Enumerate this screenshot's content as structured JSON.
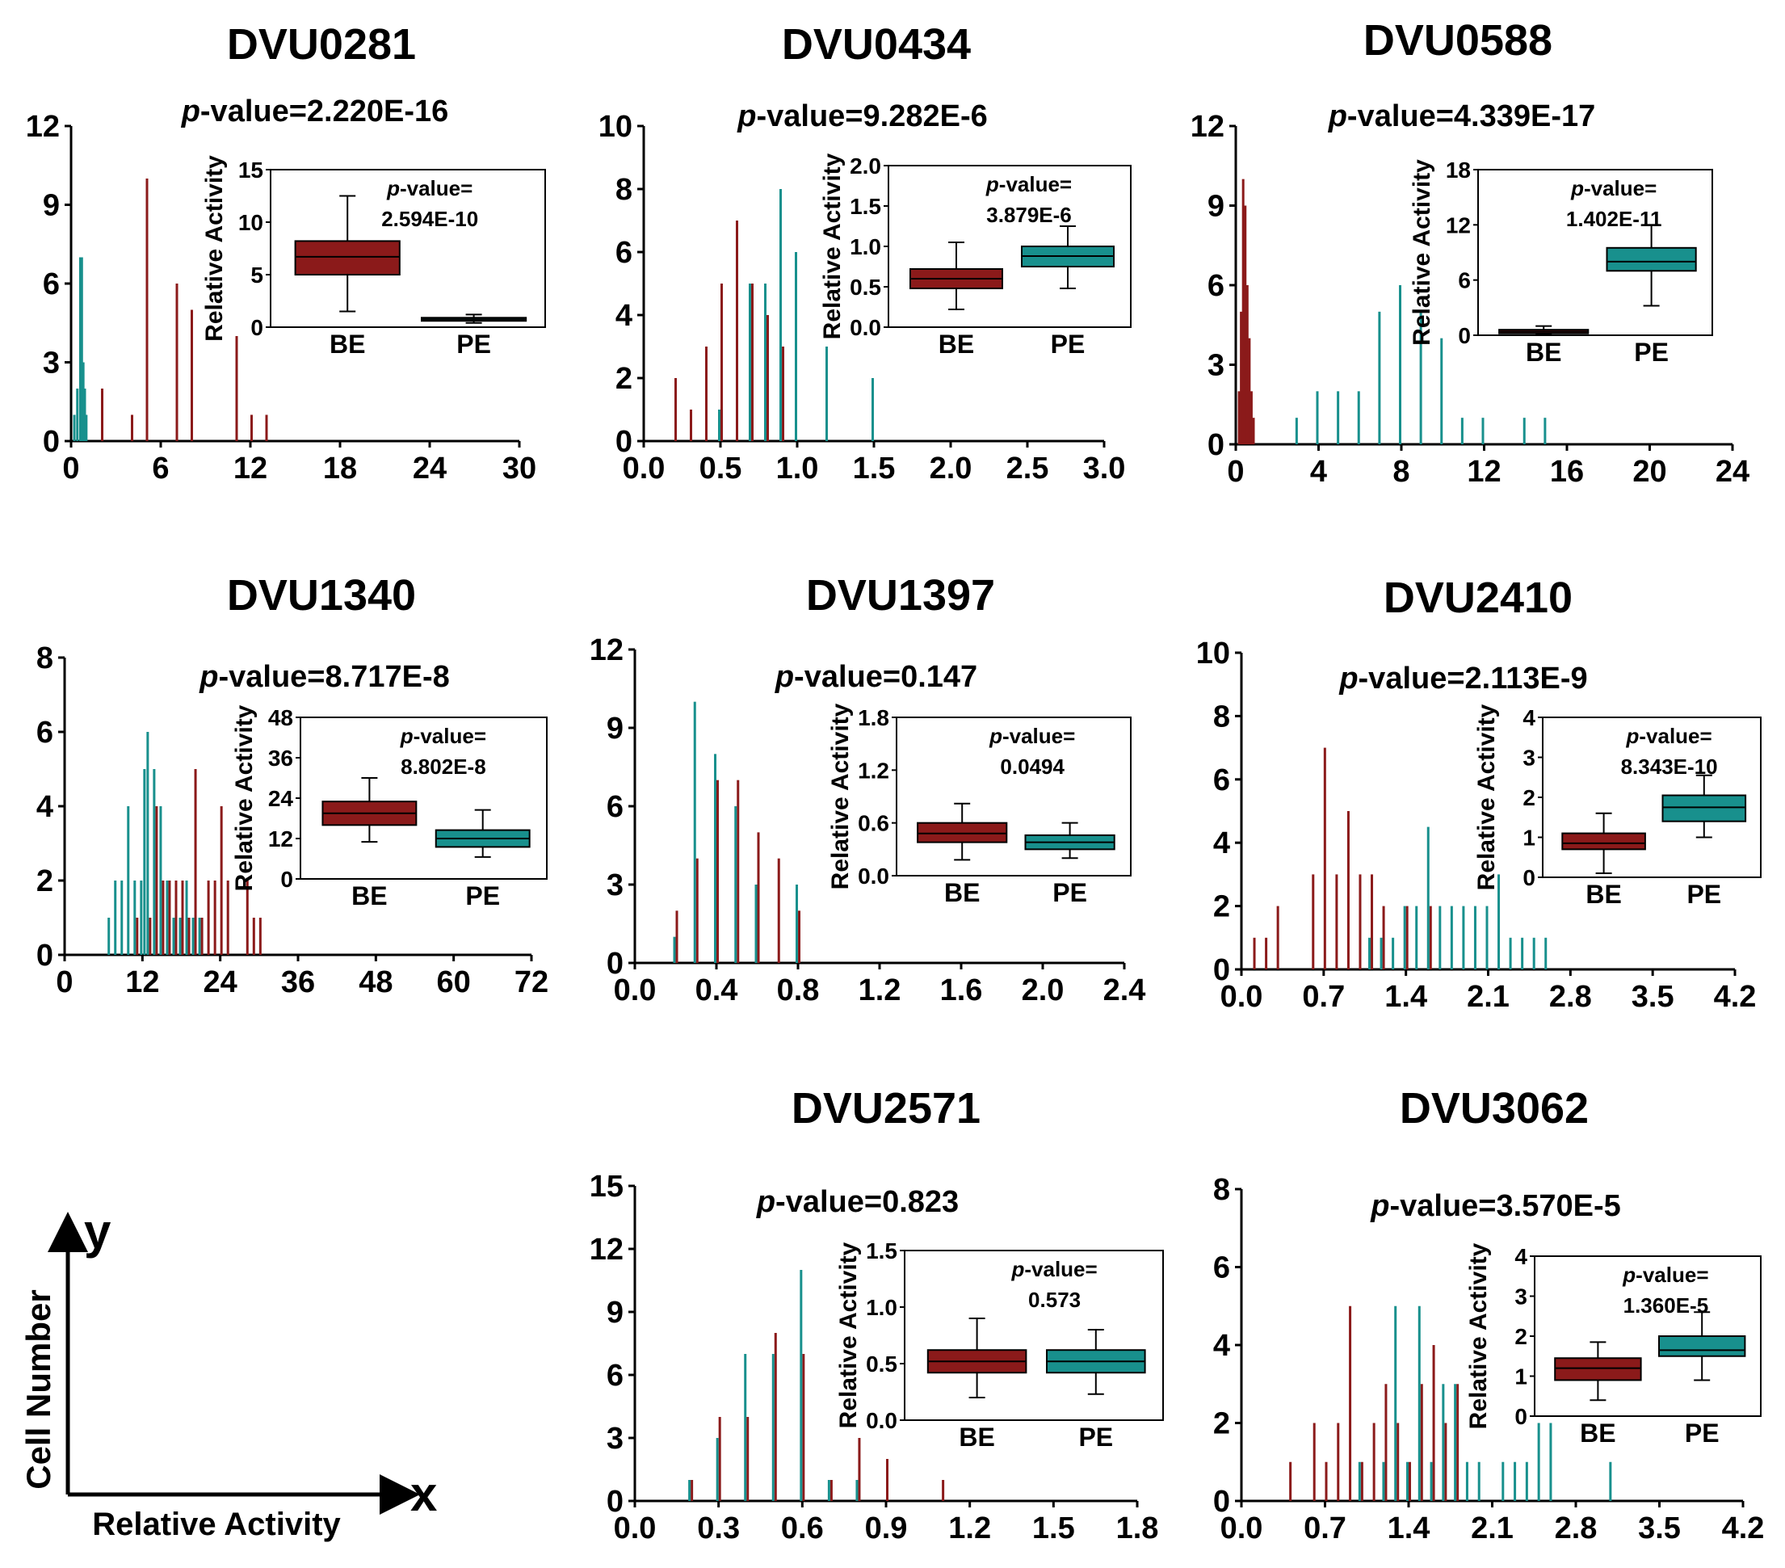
{
  "colors": {
    "be": "#8B1A1A",
    "pe": "#18908D",
    "axis": "#000000"
  },
  "pvalue_label": "-value=",
  "pvalue_prefix": "p",
  "inset_ylabel": "Relative Activity",
  "legend": {
    "y_label": "Cell Number",
    "x_label": "Relative Activity",
    "y_letter": "y",
    "x_letter": "x"
  },
  "chart_data": [
    {
      "type": "bar",
      "title": "DVU0281",
      "pvalue": "2.220E-16",
      "xlim": [
        0,
        30
      ],
      "xticks": [
        "0",
        "6",
        "12",
        "18",
        "24",
        "30"
      ],
      "ylim": [
        0,
        12
      ],
      "yticks": [
        "0",
        "3",
        "6",
        "9",
        "12"
      ],
      "series": [
        {
          "name": "BE",
          "x": [
            2,
            4,
            5,
            7,
            8,
            11,
            12,
            13
          ],
          "values": [
            2,
            1,
            10,
            6,
            5,
            4,
            1,
            1
          ]
        },
        {
          "name": "PE",
          "x": [
            0.3,
            0.5,
            0.7,
            0.8,
            0.9,
            1.0,
            1.1
          ],
          "values": [
            1,
            2,
            7,
            7,
            3,
            2,
            1
          ]
        }
      ],
      "inset": {
        "type": "box",
        "pvalue_text": "2.594E-10",
        "ylim": [
          0,
          15
        ],
        "yticks": [
          "0",
          "5",
          "10",
          "15"
        ],
        "categories": [
          "BE",
          "PE"
        ],
        "boxes": [
          {
            "name": "BE",
            "min": 1.5,
            "q1": 5,
            "median": 6.7,
            "q3": 8.2,
            "max": 12.5
          },
          {
            "name": "PE",
            "min": 0.4,
            "q1": 0.6,
            "median": 0.75,
            "q3": 0.9,
            "max": 1.2
          }
        ]
      }
    },
    {
      "type": "bar",
      "title": "DVU0434",
      "pvalue": "9.282E-6",
      "xlim": [
        0,
        3
      ],
      "xticks": [
        "0.0",
        "0.5",
        "1.0",
        "1.5",
        "2.0",
        "2.5",
        "3.0"
      ],
      "ylim": [
        0,
        10
      ],
      "yticks": [
        "0",
        "2",
        "4",
        "6",
        "8",
        "10"
      ],
      "series": [
        {
          "name": "BE",
          "x": [
            0.2,
            0.3,
            0.4,
            0.5,
            0.6,
            0.7,
            0.8,
            0.9
          ],
          "values": [
            2,
            1,
            3,
            5,
            7,
            5,
            4,
            3
          ]
        },
        {
          "name": "PE",
          "x": [
            0.5,
            0.7,
            0.8,
            0.9,
            1.0,
            1.2,
            1.5
          ],
          "values": [
            1,
            5,
            5,
            8,
            6,
            3,
            2
          ]
        }
      ],
      "inset": {
        "type": "box",
        "pvalue_text": "3.879E-6",
        "ylim": [
          0,
          2
        ],
        "yticks": [
          "0.0",
          "0.5",
          "1.0",
          "1.5",
          "2.0"
        ],
        "categories": [
          "BE",
          "PE"
        ],
        "boxes": [
          {
            "name": "BE",
            "min": 0.22,
            "q1": 0.48,
            "median": 0.6,
            "q3": 0.72,
            "max": 1.05
          },
          {
            "name": "PE",
            "min": 0.48,
            "q1": 0.75,
            "median": 0.88,
            "q3": 1.0,
            "max": 1.25
          }
        ]
      }
    },
    {
      "type": "bar",
      "title": "DVU0588",
      "pvalue": "4.339E-17",
      "xlim": [
        0,
        24
      ],
      "xticks": [
        "0",
        "4",
        "8",
        "12",
        "16",
        "20",
        "24"
      ],
      "ylim": [
        0,
        12
      ],
      "yticks": [
        "0",
        "3",
        "6",
        "9",
        "12"
      ],
      "series": [
        {
          "name": "BE",
          "x": [
            0.1,
            0.2,
            0.3,
            0.4,
            0.5,
            0.6,
            0.7,
            0.8
          ],
          "values": [
            2,
            5,
            10,
            9,
            6,
            4,
            2,
            1
          ]
        },
        {
          "name": "PE",
          "x": [
            3,
            4,
            5,
            6,
            7,
            8,
            9,
            10,
            11,
            12,
            14,
            15
          ],
          "values": [
            1,
            2,
            2,
            2,
            5,
            6,
            5,
            4,
            1,
            1,
            1,
            1
          ]
        }
      ],
      "inset": {
        "type": "box",
        "pvalue_text": "1.402E-11",
        "ylim": [
          0,
          18
        ],
        "yticks": [
          "0",
          "6",
          "12",
          "18"
        ],
        "categories": [
          "BE",
          "PE"
        ],
        "boxes": [
          {
            "name": "BE",
            "min": 0.1,
            "q1": 0.2,
            "median": 0.4,
            "q3": 0.6,
            "max": 1.0
          },
          {
            "name": "PE",
            "min": 3.2,
            "q1": 7,
            "median": 8,
            "q3": 9.5,
            "max": 12
          }
        ]
      }
    },
    {
      "type": "bar",
      "title": "DVU1340",
      "pvalue": "8.717E-8",
      "xlim": [
        0,
        72
      ],
      "xticks": [
        "0",
        "12",
        "24",
        "36",
        "48",
        "60",
        "72"
      ],
      "ylim": [
        0,
        8
      ],
      "yticks": [
        "0",
        "2",
        "4",
        "6",
        "8"
      ],
      "series": [
        {
          "name": "BE",
          "x": [
            11,
            13,
            14,
            15,
            16,
            17,
            18,
            19,
            20,
            21,
            22,
            23,
            24,
            25,
            28,
            29,
            30
          ],
          "values": [
            1,
            1,
            4,
            2,
            2,
            2,
            2,
            1,
            5,
            1,
            2,
            2,
            4,
            2,
            2,
            1,
            1
          ]
        },
        {
          "name": "PE",
          "x": [
            7,
            8,
            9,
            10,
            11,
            12,
            12.5,
            13,
            14,
            15,
            16,
            17,
            18,
            19,
            20,
            21
          ],
          "values": [
            1,
            2,
            2,
            4,
            2,
            2,
            5,
            6,
            5,
            4,
            2,
            1,
            1,
            2,
            1,
            1
          ]
        }
      ],
      "inset": {
        "type": "box",
        "pvalue_text": "8.802E-8",
        "ylim": [
          0,
          48
        ],
        "yticks": [
          "0",
          "12",
          "24",
          "36",
          "48"
        ],
        "categories": [
          "BE",
          "PE"
        ],
        "boxes": [
          {
            "name": "BE",
            "min": 11,
            "q1": 16,
            "median": 19.5,
            "q3": 23,
            "max": 30
          },
          {
            "name": "PE",
            "min": 6.5,
            "q1": 9.5,
            "median": 12,
            "q3": 14.5,
            "max": 20.5
          }
        ]
      }
    },
    {
      "type": "bar",
      "title": "DVU1397",
      "pvalue": "0.147",
      "xlim": [
        0,
        2.4
      ],
      "xticks": [
        "0.0",
        "0.4",
        "0.8",
        "1.2",
        "1.6",
        "2.0",
        "2.4"
      ],
      "ylim": [
        0,
        12
      ],
      "yticks": [
        "0",
        "3",
        "6",
        "9",
        "12"
      ],
      "series": [
        {
          "name": "BE",
          "x": [
            0.2,
            0.3,
            0.4,
            0.5,
            0.6,
            0.7,
            0.8
          ],
          "values": [
            2,
            4,
            7,
            7,
            5,
            4,
            2
          ]
        },
        {
          "name": "PE",
          "x": [
            0.2,
            0.3,
            0.4,
            0.5,
            0.6,
            0.8
          ],
          "values": [
            1,
            10,
            8,
            6,
            3,
            3
          ]
        }
      ],
      "inset": {
        "type": "box",
        "pvalue_text": "0.0494",
        "ylim": [
          0,
          1.8
        ],
        "yticks": [
          "0.0",
          "0.6",
          "1.2",
          "1.8"
        ],
        "categories": [
          "BE",
          "PE"
        ],
        "boxes": [
          {
            "name": "BE",
            "min": 0.18,
            "q1": 0.38,
            "median": 0.48,
            "q3": 0.6,
            "max": 0.82
          },
          {
            "name": "PE",
            "min": 0.2,
            "q1": 0.3,
            "median": 0.38,
            "q3": 0.46,
            "max": 0.6
          }
        ]
      }
    },
    {
      "type": "bar",
      "title": "DVU2410",
      "pvalue": "2.113E-9",
      "xlim": [
        0,
        4.2
      ],
      "xticks": [
        "0.0",
        "0.7",
        "1.4",
        "2.1",
        "2.8",
        "3.5",
        "4.2"
      ],
      "ylim": [
        0,
        10
      ],
      "yticks": [
        "0",
        "2",
        "4",
        "6",
        "8",
        "10"
      ],
      "series": [
        {
          "name": "BE",
          "x": [
            0.1,
            0.2,
            0.3,
            0.6,
            0.7,
            0.8,
            0.9,
            1.0,
            1.1,
            1.2,
            1.4,
            1.6
          ],
          "values": [
            1,
            1,
            2,
            3,
            7,
            3,
            5,
            3,
            3,
            2,
            2,
            2
          ]
        },
        {
          "name": "PE",
          "x": [
            1.1,
            1.2,
            1.3,
            1.4,
            1.5,
            1.6,
            1.7,
            1.8,
            1.9,
            2.0,
            2.1,
            2.2,
            2.3,
            2.4,
            2.5,
            2.6
          ],
          "values": [
            1,
            1,
            1,
            2,
            2,
            4.5,
            2,
            2,
            2,
            2,
            2,
            3,
            1,
            1,
            1,
            1
          ]
        }
      ],
      "inset": {
        "type": "box",
        "pvalue_text": "8.343E-10",
        "ylim": [
          0,
          4
        ],
        "yticks": [
          "0",
          "1",
          "2",
          "3",
          "4"
        ],
        "categories": [
          "BE",
          "PE"
        ],
        "boxes": [
          {
            "name": "BE",
            "min": 0.1,
            "q1": 0.7,
            "median": 0.85,
            "q3": 1.1,
            "max": 1.6
          },
          {
            "name": "PE",
            "min": 1.0,
            "q1": 1.4,
            "median": 1.75,
            "q3": 2.05,
            "max": 2.55
          }
        ]
      }
    },
    {
      "type": "bar",
      "title": "DVU2571",
      "pvalue": "0.823",
      "xlim": [
        0,
        1.8
      ],
      "xticks": [
        "0.0",
        "0.3",
        "0.6",
        "0.9",
        "1.2",
        "1.5",
        "1.8"
      ],
      "ylim": [
        0,
        15
      ],
      "yticks": [
        "0",
        "3",
        "6",
        "9",
        "12",
        "15"
      ],
      "series": [
        {
          "name": "BE",
          "x": [
            0.2,
            0.3,
            0.4,
            0.5,
            0.6,
            0.7,
            0.8,
            0.9,
            1.1
          ],
          "values": [
            1,
            4,
            4,
            8,
            7,
            1,
            3,
            2,
            1
          ]
        },
        {
          "name": "PE",
          "x": [
            0.2,
            0.3,
            0.4,
            0.5,
            0.6,
            0.7,
            0.8
          ],
          "values": [
            1,
            3,
            7,
            7,
            11,
            1,
            1
          ]
        }
      ],
      "inset": {
        "type": "box",
        "pvalue_text": "0.573",
        "ylim": [
          0,
          1.5
        ],
        "yticks": [
          "0.0",
          "0.5",
          "1.0",
          "1.5"
        ],
        "categories": [
          "BE",
          "PE"
        ],
        "boxes": [
          {
            "name": "BE",
            "min": 0.2,
            "q1": 0.42,
            "median": 0.52,
            "q3": 0.62,
            "max": 0.9
          },
          {
            "name": "PE",
            "min": 0.23,
            "q1": 0.42,
            "median": 0.52,
            "q3": 0.62,
            "max": 0.8
          }
        ]
      }
    },
    {
      "type": "bar",
      "title": "DVU3062",
      "pvalue": "3.570E-5",
      "xlim": [
        0,
        4.2
      ],
      "xticks": [
        "0.0",
        "0.7",
        "1.4",
        "2.1",
        "2.8",
        "3.5",
        "4.2"
      ],
      "ylim": [
        0,
        8
      ],
      "yticks": [
        "0",
        "2",
        "4",
        "6",
        "8"
      ],
      "series": [
        {
          "name": "BE",
          "x": [
            0.4,
            0.6,
            0.7,
            0.8,
            0.9,
            1.0,
            1.1,
            1.2,
            1.3,
            1.4,
            1.5,
            1.6,
            1.7,
            1.8
          ],
          "values": [
            1,
            2,
            1,
            2,
            5,
            1,
            2,
            3,
            2,
            1,
            3,
            4,
            2,
            3
          ]
        },
        {
          "name": "PE",
          "x": [
            1.0,
            1.2,
            1.3,
            1.4,
            1.5,
            1.6,
            1.7,
            1.8,
            1.9,
            2.0,
            2.2,
            2.3,
            2.4,
            2.5,
            2.6,
            3.1
          ],
          "values": [
            1,
            1,
            5,
            1,
            5,
            1,
            3,
            3,
            1,
            1,
            1,
            1,
            1,
            2,
            2,
            1
          ]
        }
      ],
      "inset": {
        "type": "box",
        "pvalue_text": "1.360E-5",
        "ylim": [
          0,
          4
        ],
        "yticks": [
          "0",
          "1",
          "2",
          "3",
          "4"
        ],
        "categories": [
          "BE",
          "PE"
        ],
        "boxes": [
          {
            "name": "BE",
            "min": 0.4,
            "q1": 0.9,
            "median": 1.2,
            "q3": 1.45,
            "max": 1.85
          },
          {
            "name": "PE",
            "min": 0.9,
            "q1": 1.5,
            "median": 1.65,
            "q3": 2.0,
            "max": 2.6
          }
        ]
      }
    }
  ]
}
